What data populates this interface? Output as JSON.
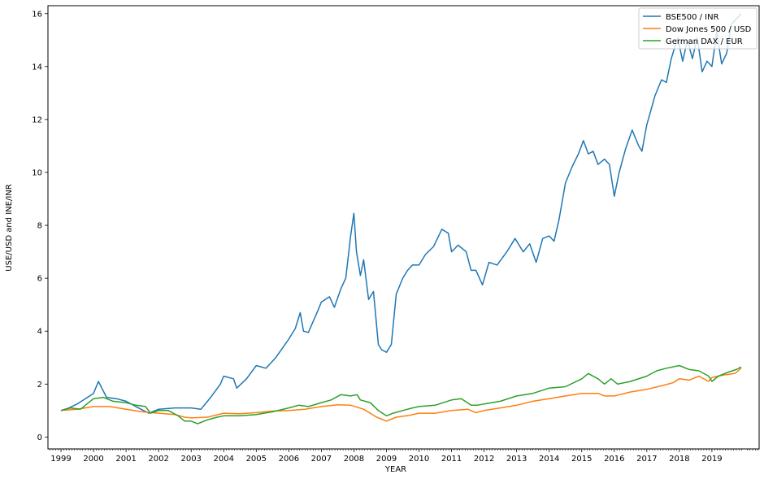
{
  "chart_data": {
    "type": "line",
    "xlabel": "YEAR",
    "ylabel": "USE/USD and INE/INR",
    "xlim": [
      1998.6,
      2020.45
    ],
    "ylim": [
      -0.45,
      16.3
    ],
    "x_ticks": [
      1999,
      2000,
      2001,
      2002,
      2003,
      2004,
      2005,
      2006,
      2007,
      2008,
      2009,
      2010,
      2011,
      2012,
      2013,
      2014,
      2015,
      2016,
      2017,
      2018,
      2019
    ],
    "x_tick_labels": [
      "1999",
      "2000",
      "2001",
      "2002",
      "2003",
      "2004",
      "2005",
      "2006",
      "2007",
      "2008",
      "2009",
      "2010",
      "2011",
      "2012",
      "2013",
      "2014",
      "2015",
      "2016",
      "2017",
      "2018",
      "2019"
    ],
    "y_ticks": [
      0,
      2,
      4,
      6,
      8,
      10,
      12,
      14,
      16
    ],
    "y_tick_labels": [
      "0",
      "2",
      "4",
      "6",
      "8",
      "10",
      "12",
      "14",
      "16"
    ],
    "grid": false,
    "legend_position": "top-right",
    "series": [
      {
        "name": "BSE500 / INR",
        "color": "#1f77b4",
        "points": [
          [
            1999.0,
            1.0
          ],
          [
            1999.25,
            1.1
          ],
          [
            1999.5,
            1.25
          ],
          [
            1999.75,
            1.45
          ],
          [
            2000.0,
            1.65
          ],
          [
            2000.15,
            2.1
          ],
          [
            2000.4,
            1.5
          ],
          [
            2000.7,
            1.45
          ],
          [
            2001.0,
            1.35
          ],
          [
            2001.3,
            1.15
          ],
          [
            2001.7,
            0.9
          ],
          [
            2002.0,
            1.05
          ],
          [
            2002.5,
            1.1
          ],
          [
            2003.0,
            1.1
          ],
          [
            2003.3,
            1.05
          ],
          [
            2003.6,
            1.5
          ],
          [
            2003.9,
            2.0
          ],
          [
            2004.0,
            2.3
          ],
          [
            2004.3,
            2.2
          ],
          [
            2004.4,
            1.85
          ],
          [
            2004.7,
            2.2
          ],
          [
            2005.0,
            2.7
          ],
          [
            2005.3,
            2.6
          ],
          [
            2005.6,
            3.0
          ],
          [
            2005.8,
            3.35
          ],
          [
            2006.0,
            3.7
          ],
          [
            2006.2,
            4.1
          ],
          [
            2006.35,
            4.7
          ],
          [
            2006.45,
            4.0
          ],
          [
            2006.6,
            3.95
          ],
          [
            2006.9,
            4.8
          ],
          [
            2007.0,
            5.1
          ],
          [
            2007.25,
            5.3
          ],
          [
            2007.4,
            4.9
          ],
          [
            2007.6,
            5.6
          ],
          [
            2007.75,
            6.0
          ],
          [
            2007.9,
            7.6
          ],
          [
            2008.0,
            8.45
          ],
          [
            2008.08,
            7.0
          ],
          [
            2008.2,
            6.1
          ],
          [
            2008.3,
            6.7
          ],
          [
            2008.45,
            5.2
          ],
          [
            2008.6,
            5.5
          ],
          [
            2008.75,
            3.5
          ],
          [
            2008.85,
            3.3
          ],
          [
            2009.0,
            3.2
          ],
          [
            2009.15,
            3.5
          ],
          [
            2009.3,
            5.4
          ],
          [
            2009.5,
            6.0
          ],
          [
            2009.65,
            6.3
          ],
          [
            2009.8,
            6.5
          ],
          [
            2010.0,
            6.5
          ],
          [
            2010.2,
            6.9
          ],
          [
            2010.45,
            7.2
          ],
          [
            2010.7,
            7.85
          ],
          [
            2010.9,
            7.7
          ],
          [
            2011.0,
            7.0
          ],
          [
            2011.2,
            7.25
          ],
          [
            2011.45,
            7.0
          ],
          [
            2011.6,
            6.3
          ],
          [
            2011.75,
            6.3
          ],
          [
            2011.95,
            5.75
          ],
          [
            2012.15,
            6.6
          ],
          [
            2012.4,
            6.5
          ],
          [
            2012.7,
            7.0
          ],
          [
            2012.95,
            7.5
          ],
          [
            2013.2,
            7.0
          ],
          [
            2013.4,
            7.3
          ],
          [
            2013.6,
            6.6
          ],
          [
            2013.8,
            7.5
          ],
          [
            2014.0,
            7.6
          ],
          [
            2014.15,
            7.4
          ],
          [
            2014.3,
            8.2
          ],
          [
            2014.5,
            9.6
          ],
          [
            2014.7,
            10.2
          ],
          [
            2014.9,
            10.7
          ],
          [
            2015.05,
            11.2
          ],
          [
            2015.2,
            10.7
          ],
          [
            2015.35,
            10.8
          ],
          [
            2015.5,
            10.3
          ],
          [
            2015.7,
            10.5
          ],
          [
            2015.85,
            10.3
          ],
          [
            2016.0,
            9.1
          ],
          [
            2016.15,
            10.0
          ],
          [
            2016.35,
            10.9
          ],
          [
            2016.55,
            11.6
          ],
          [
            2016.75,
            11.0
          ],
          [
            2016.85,
            10.8
          ],
          [
            2017.0,
            11.8
          ],
          [
            2017.25,
            12.9
          ],
          [
            2017.45,
            13.5
          ],
          [
            2017.6,
            13.4
          ],
          [
            2017.75,
            14.3
          ],
          [
            2017.95,
            15.1
          ],
          [
            2018.1,
            14.2
          ],
          [
            2018.25,
            15.0
          ],
          [
            2018.4,
            14.3
          ],
          [
            2018.55,
            15.1
          ],
          [
            2018.7,
            13.8
          ],
          [
            2018.85,
            14.2
          ],
          [
            2019.0,
            14.0
          ],
          [
            2019.15,
            15.3
          ],
          [
            2019.3,
            14.1
          ],
          [
            2019.45,
            14.5
          ],
          [
            2019.6,
            15.6
          ],
          [
            2019.75,
            15.8
          ],
          [
            2019.9,
            16.0
          ]
        ]
      },
      {
        "name": "Dow Jones 500 / USD",
        "color": "#ff7f0e",
        "points": [
          [
            1999.0,
            1.0
          ],
          [
            1999.5,
            1.05
          ],
          [
            2000.0,
            1.15
          ],
          [
            2000.5,
            1.15
          ],
          [
            2001.0,
            1.05
          ],
          [
            2001.5,
            0.95
          ],
          [
            2002.0,
            0.9
          ],
          [
            2002.5,
            0.85
          ],
          [
            2002.8,
            0.75
          ],
          [
            2003.0,
            0.72
          ],
          [
            2003.5,
            0.75
          ],
          [
            2004.0,
            0.9
          ],
          [
            2004.5,
            0.88
          ],
          [
            2005.0,
            0.92
          ],
          [
            2005.5,
            0.98
          ],
          [
            2006.0,
            1.0
          ],
          [
            2006.5,
            1.05
          ],
          [
            2007.0,
            1.15
          ],
          [
            2007.5,
            1.22
          ],
          [
            2007.9,
            1.2
          ],
          [
            2008.3,
            1.05
          ],
          [
            2008.7,
            0.75
          ],
          [
            2009.0,
            0.6
          ],
          [
            2009.3,
            0.75
          ],
          [
            2009.7,
            0.82
          ],
          [
            2010.0,
            0.9
          ],
          [
            2010.5,
            0.9
          ],
          [
            2011.0,
            1.0
          ],
          [
            2011.5,
            1.05
          ],
          [
            2011.75,
            0.92
          ],
          [
            2012.0,
            1.0
          ],
          [
            2012.5,
            1.1
          ],
          [
            2013.0,
            1.2
          ],
          [
            2013.5,
            1.35
          ],
          [
            2014.0,
            1.45
          ],
          [
            2014.5,
            1.55
          ],
          [
            2015.0,
            1.65
          ],
          [
            2015.5,
            1.65
          ],
          [
            2015.7,
            1.55
          ],
          [
            2016.0,
            1.55
          ],
          [
            2016.5,
            1.7
          ],
          [
            2017.0,
            1.8
          ],
          [
            2017.5,
            1.95
          ],
          [
            2017.8,
            2.05
          ],
          [
            2018.0,
            2.2
          ],
          [
            2018.3,
            2.15
          ],
          [
            2018.6,
            2.3
          ],
          [
            2018.9,
            2.1
          ],
          [
            2019.0,
            2.25
          ],
          [
            2019.2,
            2.3
          ],
          [
            2019.4,
            2.35
          ],
          [
            2019.7,
            2.4
          ],
          [
            2019.9,
            2.6
          ]
        ]
      },
      {
        "name": "German DAX / EUR",
        "color": "#2ca02c",
        "points": [
          [
            1999.0,
            1.0
          ],
          [
            1999.3,
            1.1
          ],
          [
            1999.6,
            1.05
          ],
          [
            2000.0,
            1.45
          ],
          [
            2000.3,
            1.5
          ],
          [
            2000.6,
            1.35
          ],
          [
            2001.0,
            1.3
          ],
          [
            2001.3,
            1.2
          ],
          [
            2001.6,
            1.15
          ],
          [
            2001.75,
            0.9
          ],
          [
            2002.0,
            1.0
          ],
          [
            2002.3,
            1.0
          ],
          [
            2002.6,
            0.8
          ],
          [
            2002.8,
            0.6
          ],
          [
            2003.0,
            0.6
          ],
          [
            2003.2,
            0.5
          ],
          [
            2003.5,
            0.65
          ],
          [
            2003.8,
            0.75
          ],
          [
            2004.0,
            0.8
          ],
          [
            2004.5,
            0.8
          ],
          [
            2005.0,
            0.85
          ],
          [
            2005.5,
            0.95
          ],
          [
            2006.0,
            1.1
          ],
          [
            2006.3,
            1.2
          ],
          [
            2006.6,
            1.15
          ],
          [
            2007.0,
            1.3
          ],
          [
            2007.3,
            1.4
          ],
          [
            2007.6,
            1.6
          ],
          [
            2007.9,
            1.55
          ],
          [
            2008.1,
            1.6
          ],
          [
            2008.2,
            1.4
          ],
          [
            2008.5,
            1.3
          ],
          [
            2008.75,
            1.0
          ],
          [
            2009.0,
            0.8
          ],
          [
            2009.2,
            0.9
          ],
          [
            2009.5,
            1.0
          ],
          [
            2009.8,
            1.1
          ],
          [
            2010.0,
            1.15
          ],
          [
            2010.5,
            1.2
          ],
          [
            2011.0,
            1.4
          ],
          [
            2011.3,
            1.45
          ],
          [
            2011.6,
            1.2
          ],
          [
            2011.8,
            1.2
          ],
          [
            2012.0,
            1.25
          ],
          [
            2012.5,
            1.35
          ],
          [
            2013.0,
            1.55
          ],
          [
            2013.5,
            1.65
          ],
          [
            2014.0,
            1.85
          ],
          [
            2014.5,
            1.9
          ],
          [
            2015.0,
            2.2
          ],
          [
            2015.2,
            2.4
          ],
          [
            2015.5,
            2.2
          ],
          [
            2015.7,
            2.0
          ],
          [
            2015.9,
            2.2
          ],
          [
            2016.1,
            2.0
          ],
          [
            2016.5,
            2.1
          ],
          [
            2017.0,
            2.3
          ],
          [
            2017.3,
            2.5
          ],
          [
            2017.6,
            2.6
          ],
          [
            2018.0,
            2.7
          ],
          [
            2018.3,
            2.55
          ],
          [
            2018.6,
            2.5
          ],
          [
            2018.9,
            2.3
          ],
          [
            2019.0,
            2.1
          ],
          [
            2019.2,
            2.3
          ],
          [
            2019.5,
            2.45
          ],
          [
            2019.75,
            2.55
          ],
          [
            2019.9,
            2.65
          ]
        ]
      }
    ]
  }
}
